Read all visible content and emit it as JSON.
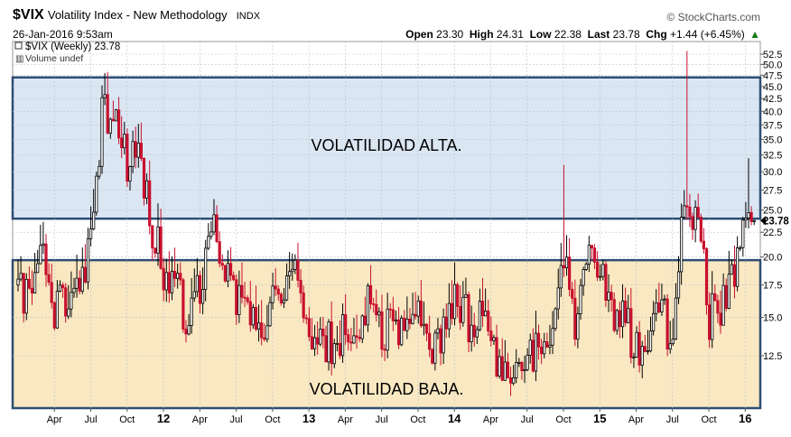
{
  "header": {
    "symbol": "$VIX",
    "name": "Volatility Index - New Methodology",
    "exchange": "INDX",
    "brand": "© StockCharts.com",
    "date": "26-Jan-2016 9:53am",
    "open_label": "Open",
    "open": "23.30",
    "high_label": "High",
    "high": "24.31",
    "low_label": "Low",
    "low": "22.38",
    "last_label": "Last",
    "last": "23.78",
    "chg_label": "Chg",
    "chg": "+1.44 (+6.45%)"
  },
  "legend": {
    "series": "$VIX (Weekly) 23.78",
    "volume": "Volume undef"
  },
  "zones": {
    "high_label": "VOLATILIDAD ALTA.",
    "low_label": "VOLATILIDAD BAJA."
  },
  "colors": {
    "high_zone": "#dbe6f3",
    "low_zone": "#f9e8c2",
    "zone_border": "#2e4d73",
    "up_candle": "#000000",
    "down_candle": "#c8102e"
  },
  "chart_data": {
    "type": "candlestick",
    "title": "$VIX (Weekly) 23.78",
    "yscale": "log",
    "ylim": [
      10,
      55
    ],
    "y_ticks": [
      12.5,
      15.0,
      17.5,
      20.0,
      22.5,
      25.0,
      27.5,
      30.0,
      32.5,
      35.0,
      37.5,
      40.0,
      42.5,
      45.0,
      47.5,
      50.0,
      52.5
    ],
    "y_tick_labels": [
      "12.5",
      "15.0",
      "17.5",
      "20.0",
      "22.5",
      "25.0",
      "27.5",
      "30.0",
      "32.5",
      "35.0",
      "37.5",
      "40.0",
      "42.5",
      "45.0",
      "47.5",
      "50.0",
      "52.5"
    ],
    "last_value_label": "23.78",
    "x_range": [
      "2011-01",
      "2016-01"
    ],
    "x_tick_labels": [
      "Apr",
      "Jul",
      "Oct",
      "12",
      "Apr",
      "Jul",
      "Oct",
      "13",
      "Apr",
      "Jul",
      "Oct",
      "14",
      "Apr",
      "Jul",
      "Oct",
      "15",
      "Apr",
      "Jul",
      "Oct",
      "16"
    ],
    "bold_ticks": [
      "12",
      "13",
      "14",
      "15",
      "16"
    ],
    "zones": [
      {
        "label": "VOLATILIDAD ALTA.",
        "from": 24.0,
        "to": 47.0
      },
      {
        "label": "VOLATILIDAD BAJA.",
        "from": 10.0,
        "to": 19.7
      }
    ],
    "close_path": [
      [
        "2011-01",
        17.5
      ],
      [
        "2011-02",
        16.5
      ],
      [
        "2011-03",
        20.0
      ],
      [
        "2011-04",
        15.5
      ],
      [
        "2011-05",
        17.0
      ],
      [
        "2011-06",
        17.5
      ],
      [
        "2011-07",
        21.0
      ],
      [
        "2011-08",
        40.0
      ],
      [
        "2011-09",
        38.0
      ],
      [
        "2011-10",
        32.0
      ],
      [
        "2011-11",
        32.0
      ],
      [
        "2011-12",
        23.0
      ],
      [
        "2012-01",
        19.0
      ],
      [
        "2012-02",
        17.5
      ],
      [
        "2012-03",
        15.0
      ],
      [
        "2012-04",
        17.5
      ],
      [
        "2012-05",
        23.0
      ],
      [
        "2012-06",
        19.0
      ],
      [
        "2012-07",
        17.0
      ],
      [
        "2012-08",
        15.0
      ],
      [
        "2012-09",
        14.5
      ],
      [
        "2012-10",
        16.0
      ],
      [
        "2012-11",
        16.0
      ],
      [
        "2012-12",
        20.0
      ],
      [
        "2013-01",
        13.5
      ],
      [
        "2013-02",
        14.0
      ],
      [
        "2013-03",
        13.0
      ],
      [
        "2013-04",
        14.0
      ],
      [
        "2013-05",
        13.0
      ],
      [
        "2013-06",
        18.0
      ],
      [
        "2013-07",
        13.5
      ],
      [
        "2013-08",
        15.0
      ],
      [
        "2013-09",
        14.5
      ],
      [
        "2013-10",
        15.0
      ],
      [
        "2013-11",
        13.0
      ],
      [
        "2013-12",
        14.0
      ],
      [
        "2014-01",
        17.0
      ],
      [
        "2014-02",
        15.0
      ],
      [
        "2014-03",
        15.0
      ],
      [
        "2014-04",
        13.5
      ],
      [
        "2014-05",
        11.5
      ],
      [
        "2014-06",
        11.0
      ],
      [
        "2014-07",
        12.5
      ],
      [
        "2014-08",
        13.0
      ],
      [
        "2014-09",
        14.0
      ],
      [
        "2014-10",
        21.0
      ],
      [
        "2014-11",
        13.5
      ],
      [
        "2014-12",
        19.0
      ],
      [
        "2015-01",
        20.0
      ],
      [
        "2015-02",
        15.5
      ],
      [
        "2015-03",
        15.0
      ],
      [
        "2015-04",
        13.0
      ],
      [
        "2015-05",
        13.0
      ],
      [
        "2015-06",
        16.0
      ],
      [
        "2015-07",
        12.5
      ],
      [
        "2015-08",
        28.0
      ],
      [
        "2015-09",
        24.0
      ],
      [
        "2015-10",
        15.0
      ],
      [
        "2015-11",
        16.0
      ],
      [
        "2015-12",
        18.0
      ],
      [
        "2016-01",
        23.78
      ]
    ],
    "spikes": [
      [
        "2011-08",
        48.0
      ],
      [
        "2014-10",
        31.0
      ],
      [
        "2015-08",
        53.3
      ],
      [
        "2016-01",
        32.0
      ]
    ]
  }
}
